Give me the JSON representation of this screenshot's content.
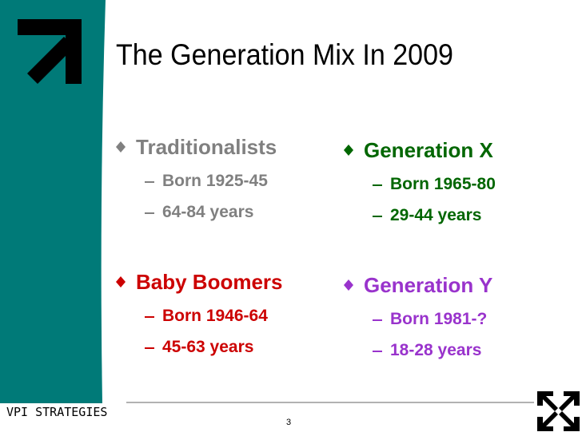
{
  "header": {
    "title": "The Generation Mix In 2009"
  },
  "groups": [
    {
      "name": "Traditionalists",
      "items": [
        "Born 1925-45",
        "64-84 years"
      ]
    },
    {
      "name": "Baby Boomers",
      "items": [
        "Born 1946-64",
        "45-63 years"
      ]
    },
    {
      "name": "Generation X",
      "items": [
        "Born 1965-80",
        "29-44 years"
      ]
    },
    {
      "name": "Generation Y",
      "items": [
        "Born 1981-?",
        "18-28 years"
      ]
    }
  ],
  "footer": {
    "brand": "VPI STRATEGIES",
    "page": "3"
  }
}
